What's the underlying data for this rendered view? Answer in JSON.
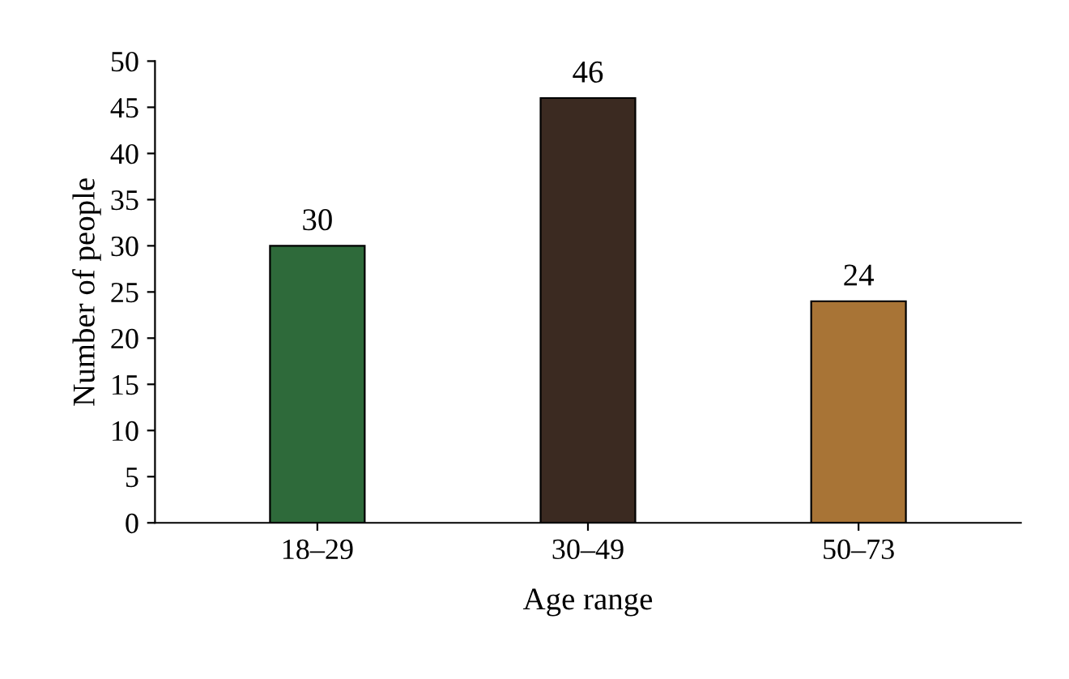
{
  "chart_data": {
    "type": "bar",
    "xlabel": "Age range",
    "ylabel": "Number of people",
    "categories": [
      "18–29",
      "30–49",
      "50–73"
    ],
    "values": [
      30,
      46,
      24
    ],
    "colors": [
      "#2e6a3a",
      "#3b2a21",
      "#a87436"
    ],
    "ylim": [
      0,
      50
    ],
    "yticks": [
      0,
      5,
      10,
      15,
      20,
      25,
      30,
      35,
      40,
      45,
      50
    ],
    "data_labels": true,
    "grid": false
  }
}
